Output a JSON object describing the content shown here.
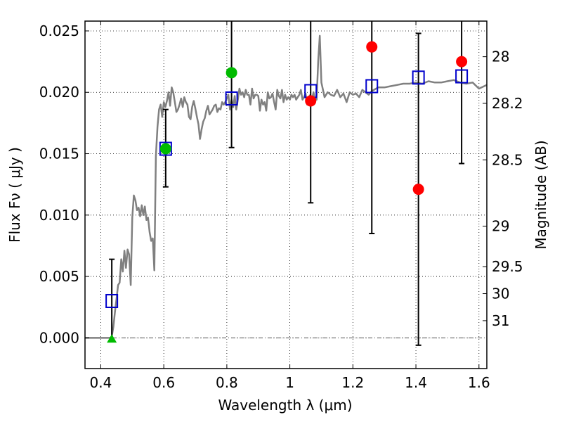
{
  "chart_data": {
    "type": "scatter",
    "xlabel": "Wavelength  λ (μm)",
    "ylabel": "Flux  Fν  ( μJy )",
    "y2label": "Magnitude (AB)",
    "xlim": [
      0.35,
      1.625
    ],
    "ylim": [
      -0.0025,
      0.0258
    ],
    "grid": true,
    "x_ticks": [
      0.4,
      0.6,
      0.8,
      1.0,
      1.2,
      1.4,
      1.6
    ],
    "x_tick_labels": [
      "0.4",
      "0.6",
      "0.8",
      "1",
      "1.2",
      "1.4",
      "1.6"
    ],
    "y_ticks": [
      0.0,
      0.005,
      0.01,
      0.015,
      0.02,
      0.025
    ],
    "y_tick_labels": [
      "0.000",
      "0.005",
      "0.010",
      "0.015",
      "0.020",
      "0.025"
    ],
    "mag_ticks": [
      {
        "label": "28",
        "flux": 0.0229
      },
      {
        "label": "28.2",
        "flux": 0.0191
      },
      {
        "label": "28.5",
        "flux": 0.0145
      },
      {
        "label": "29",
        "flux": 0.0091
      },
      {
        "label": "29.5",
        "flux": 0.0058
      },
      {
        "label": "30",
        "flux": 0.0036
      },
      {
        "label": "31",
        "flux": 0.0014
      }
    ],
    "sed_model": {
      "color": "#808080",
      "x": [
        0.35,
        0.4,
        0.42,
        0.425,
        0.43,
        0.435,
        0.44,
        0.445,
        0.45,
        0.455,
        0.46,
        0.465,
        0.47,
        0.475,
        0.48,
        0.485,
        0.49,
        0.495,
        0.5,
        0.505,
        0.51,
        0.515,
        0.52,
        0.525,
        0.53,
        0.535,
        0.54,
        0.545,
        0.55,
        0.555,
        0.56,
        0.565,
        0.57,
        0.575,
        0.58,
        0.585,
        0.59,
        0.595,
        0.6,
        0.605,
        0.61,
        0.615,
        0.62,
        0.625,
        0.63,
        0.635,
        0.64,
        0.645,
        0.65,
        0.655,
        0.66,
        0.665,
        0.67,
        0.675,
        0.68,
        0.685,
        0.69,
        0.695,
        0.7,
        0.705,
        0.71,
        0.715,
        0.72,
        0.725,
        0.73,
        0.735,
        0.74,
        0.745,
        0.75,
        0.755,
        0.76,
        0.765,
        0.77,
        0.775,
        0.78,
        0.785,
        0.79,
        0.795,
        0.8,
        0.805,
        0.81,
        0.815,
        0.82,
        0.825,
        0.83,
        0.835,
        0.84,
        0.845,
        0.85,
        0.855,
        0.86,
        0.865,
        0.87,
        0.875,
        0.88,
        0.885,
        0.89,
        0.895,
        0.9,
        0.905,
        0.91,
        0.915,
        0.92,
        0.925,
        0.93,
        0.935,
        0.94,
        0.945,
        0.95,
        0.955,
        0.96,
        0.965,
        0.97,
        0.975,
        0.98,
        0.985,
        0.99,
        0.995,
        1.0,
        1.005,
        1.01,
        1.015,
        1.02,
        1.025,
        1.03,
        1.035,
        1.04,
        1.045,
        1.05,
        1.055,
        1.06,
        1.065,
        1.07,
        1.075,
        1.08,
        1.085,
        1.09,
        1.095,
        1.1,
        1.11,
        1.12,
        1.13,
        1.14,
        1.15,
        1.16,
        1.17,
        1.18,
        1.19,
        1.2,
        1.21,
        1.22,
        1.23,
        1.24,
        1.25,
        1.26,
        1.28,
        1.3,
        1.32,
        1.34,
        1.36,
        1.38,
        1.4,
        1.42,
        1.44,
        1.46,
        1.48,
        1.5,
        1.52,
        1.54,
        1.56,
        1.58,
        1.6,
        1.625
      ],
      "y": [
        0.0,
        0.0,
        0.0,
        0.0,
        0.0,
        0.0001,
        0.0009,
        0.0021,
        0.0032,
        0.0043,
        0.0045,
        0.0064,
        0.0054,
        0.0071,
        0.0057,
        0.0072,
        0.0068,
        0.0043,
        0.0098,
        0.0116,
        0.0112,
        0.0104,
        0.0106,
        0.0099,
        0.0108,
        0.01,
        0.0107,
        0.0096,
        0.0098,
        0.0086,
        0.0079,
        0.0081,
        0.0055,
        0.0148,
        0.0172,
        0.0186,
        0.019,
        0.018,
        0.0192,
        0.0188,
        0.0193,
        0.02,
        0.0189,
        0.0204,
        0.02,
        0.0192,
        0.0184,
        0.0186,
        0.019,
        0.0195,
        0.0188,
        0.0196,
        0.0192,
        0.019,
        0.018,
        0.0178,
        0.0188,
        0.0193,
        0.0187,
        0.018,
        0.0174,
        0.0162,
        0.017,
        0.0176,
        0.0179,
        0.0185,
        0.0189,
        0.0182,
        0.0184,
        0.0186,
        0.0189,
        0.019,
        0.0184,
        0.0187,
        0.0186,
        0.0192,
        0.019,
        0.0192,
        0.0195,
        0.0198,
        0.0186,
        0.0194,
        0.0188,
        0.0197,
        0.0186,
        0.0194,
        0.0203,
        0.0198,
        0.02,
        0.0196,
        0.0202,
        0.0198,
        0.0198,
        0.019,
        0.0203,
        0.0195,
        0.0198,
        0.0198,
        0.0197,
        0.0185,
        0.0194,
        0.019,
        0.0192,
        0.0185,
        0.02,
        0.0195,
        0.0196,
        0.0199,
        0.0192,
        0.0186,
        0.0202,
        0.0197,
        0.0195,
        0.0202,
        0.0192,
        0.0198,
        0.0194,
        0.0196,
        0.0194,
        0.0198,
        0.0196,
        0.0198,
        0.0194,
        0.0196,
        0.0198,
        0.0202,
        0.0194,
        0.0196,
        0.0199,
        0.019,
        0.0196,
        0.0198,
        0.0194,
        0.02,
        0.0194,
        0.0194,
        0.0226,
        0.0246,
        0.0208,
        0.0196,
        0.02,
        0.0198,
        0.0197,
        0.0202,
        0.0196,
        0.0199,
        0.0192,
        0.02,
        0.0198,
        0.0199,
        0.0196,
        0.0202,
        0.02,
        0.0198,
        0.0201,
        0.0204,
        0.0204,
        0.0205,
        0.0206,
        0.0207,
        0.0207,
        0.0208,
        0.0207,
        0.0209,
        0.0208,
        0.0208,
        0.0209,
        0.021,
        0.0208,
        0.0207,
        0.0208,
        0.0203,
        0.0206
      ]
    },
    "series": [
      {
        "name": "",
        "marker": "open-square",
        "color": "#0000cc",
        "x": [
          0.435,
          0.606,
          0.815,
          1.066,
          1.26,
          1.408,
          1.545
        ],
        "y": [
          0.003,
          0.0154,
          0.0195,
          0.0201,
          0.0205,
          0.0212,
          0.0213
        ]
      },
      {
        "name": "",
        "marker": "filled-circle",
        "color": "#00bb00",
        "x": [
          0.606,
          0.815
        ],
        "y": [
          0.0154,
          0.0216
        ]
      },
      {
        "name": "",
        "marker": "filled-triangle",
        "color": "#00bb00",
        "x": [
          0.435
        ],
        "y": [
          -0.0001
        ]
      },
      {
        "name": "",
        "marker": "filled-circle",
        "color": "#ff0000",
        "x": [
          1.066,
          1.26,
          1.408,
          1.545
        ],
        "y": [
          0.0193,
          0.0237,
          0.0121,
          0.0225
        ]
      }
    ],
    "error_bars": [
      {
        "x": 0.435,
        "low": -0.0002,
        "high": 0.0064
      },
      {
        "x": 0.606,
        "low": 0.0123,
        "high": 0.0186
      },
      {
        "x": 0.815,
        "low": 0.0155,
        "high": 0.0258
      },
      {
        "x": 1.066,
        "low": 0.011,
        "high": 0.0258
      },
      {
        "x": 1.26,
        "low": 0.0085,
        "high": 0.0258
      },
      {
        "x": 1.408,
        "low": -0.0006,
        "high": 0.0248
      },
      {
        "x": 1.545,
        "low": 0.0142,
        "high": 0.0258
      }
    ]
  }
}
